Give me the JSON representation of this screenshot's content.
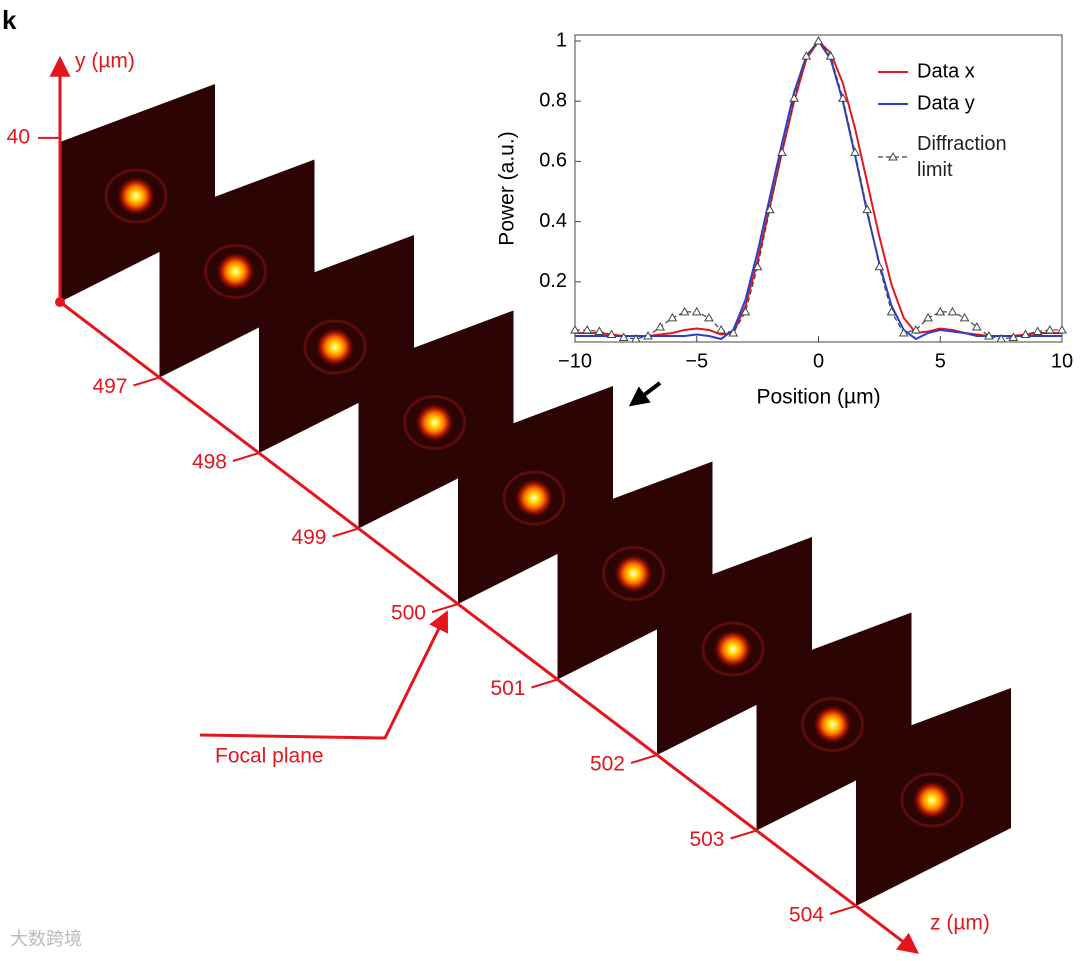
{
  "chart_data": [
    {
      "type": "schematic",
      "panel_label": "k",
      "y_label": "y (µm)",
      "ylim": [
        0,
        59
      ],
      "yticks": [
        40
      ],
      "z_label": "z (µm)",
      "zlim": [
        496,
        504.6
      ],
      "zticks": [
        497,
        498,
        499,
        500,
        501,
        502,
        503,
        504
      ],
      "annotation": "Focal plane",
      "color": "#e3161d",
      "watermark": "大数跨境"
    },
    {
      "type": "line",
      "x_label": "Position (µm)",
      "y_label": "Power (a.u.)",
      "xlim": [
        -10,
        10
      ],
      "xticks": [
        {
          "value": -10,
          "label": "−10"
        },
        {
          "value": -5,
          "label": "−5"
        },
        0,
        5,
        10
      ],
      "ylim": [
        0,
        1.02
      ],
      "yticks": [
        0.2,
        0.4,
        0.6,
        0.8,
        1
      ],
      "x": [
        -10,
        -9.5,
        -9,
        -8.5,
        -8,
        -7.5,
        -7,
        -6.5,
        -6,
        -5.5,
        -5,
        -4.5,
        -4,
        -3.5,
        -3,
        -2.5,
        -2,
        -1.5,
        -1,
        -0.5,
        0,
        0.5,
        1,
        1.5,
        2,
        2.5,
        3,
        3.5,
        4,
        4.5,
        5,
        5.5,
        6,
        6.5,
        7,
        7.5,
        8,
        8.5,
        9,
        9.5,
        10
      ],
      "series": [
        {
          "name": "Data x",
          "color": "#e3161d",
          "style": "solid",
          "values": [
            0.03,
            0.03,
            0.03,
            0.025,
            0.02,
            0.02,
            0.02,
            0.025,
            0.03,
            0.04,
            0.045,
            0.04,
            0.025,
            0.03,
            0.12,
            0.27,
            0.45,
            0.63,
            0.8,
            0.94,
            1.0,
            0.96,
            0.86,
            0.71,
            0.53,
            0.35,
            0.19,
            0.08,
            0.03,
            0.035,
            0.045,
            0.04,
            0.03,
            0.025,
            0.02,
            0.02,
            0.02,
            0.025,
            0.03,
            0.03,
            0.03
          ]
        },
        {
          "name": "Data y",
          "color": "#2a3fd0",
          "style": "solid",
          "values": [
            0.02,
            0.02,
            0.02,
            0.02,
            0.02,
            0.02,
            0.02,
            0.02,
            0.02,
            0.02,
            0.025,
            0.02,
            0.01,
            0.04,
            0.14,
            0.3,
            0.48,
            0.66,
            0.83,
            0.95,
            1.0,
            0.94,
            0.8,
            0.62,
            0.43,
            0.26,
            0.12,
            0.04,
            0.01,
            0.03,
            0.04,
            0.035,
            0.03,
            0.02,
            0.02,
            0.02,
            0.02,
            0.02,
            0.02,
            0.02,
            0.02
          ]
        },
        {
          "name": "Diffraction limit",
          "color": "#444444",
          "style": "dashed-triangle",
          "values": [
            0.04,
            0.04,
            0.035,
            0.025,
            0.015,
            0.01,
            0.02,
            0.05,
            0.08,
            0.1,
            0.1,
            0.08,
            0.04,
            0.03,
            0.1,
            0.25,
            0.44,
            0.63,
            0.81,
            0.95,
            1.0,
            0.95,
            0.81,
            0.63,
            0.44,
            0.25,
            0.1,
            0.03,
            0.04,
            0.08,
            0.1,
            0.1,
            0.08,
            0.05,
            0.02,
            0.01,
            0.015,
            0.025,
            0.035,
            0.04,
            0.04
          ]
        }
      ]
    }
  ]
}
